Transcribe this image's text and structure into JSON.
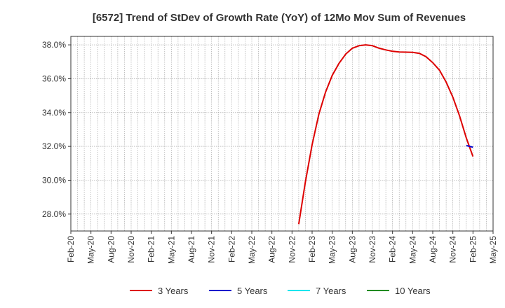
{
  "chart_data": {
    "type": "line",
    "title": "[6572]  Trend of StDev of Growth Rate (YoY) of 12Mo Mov Sum of Revenues",
    "xlabel": "",
    "ylabel": "",
    "y_tick_labels": [
      "28.0%",
      "30.0%",
      "32.0%",
      "34.0%",
      "36.0%",
      "38.0%"
    ],
    "y_ticks": [
      28,
      30,
      32,
      34,
      36,
      38
    ],
    "ylim": [
      27,
      38.5
    ],
    "x_tick_labels": [
      "Feb-20",
      "May-20",
      "Aug-20",
      "Nov-20",
      "Feb-21",
      "May-21",
      "Aug-21",
      "Nov-21",
      "Feb-22",
      "May-22",
      "Aug-22",
      "Nov-22",
      "Feb-23",
      "May-23",
      "Aug-23",
      "Nov-23",
      "Feb-24",
      "May-24",
      "Aug-24",
      "Nov-24",
      "Feb-25",
      "May-25"
    ],
    "x_unit": "months since Feb-20",
    "xlim": [
      0,
      63
    ],
    "grid": true,
    "legend_position": "bottom",
    "series": [
      {
        "name": "3 Years",
        "color": "#dd0000",
        "points": [
          [
            34,
            27.4
          ],
          [
            35,
            29.9
          ],
          [
            36,
            32.1
          ],
          [
            37,
            33.9
          ],
          [
            38,
            35.2
          ],
          [
            39,
            36.2
          ],
          [
            40,
            36.9
          ],
          [
            41,
            37.45
          ],
          [
            42,
            37.8
          ],
          [
            43,
            37.95
          ],
          [
            44,
            38.0
          ],
          [
            45,
            37.95
          ],
          [
            46,
            37.8
          ],
          [
            47,
            37.7
          ],
          [
            48,
            37.62
          ],
          [
            49,
            37.58
          ],
          [
            50,
            37.57
          ],
          [
            51,
            37.56
          ],
          [
            52,
            37.5
          ],
          [
            53,
            37.3
          ],
          [
            54,
            36.95
          ],
          [
            55,
            36.5
          ],
          [
            56,
            35.8
          ],
          [
            57,
            34.9
          ],
          [
            58,
            33.8
          ],
          [
            59,
            32.5
          ],
          [
            60,
            31.4
          ]
        ]
      },
      {
        "name": "5 Years",
        "color": "#0000cc",
        "points": [
          [
            59,
            32.05
          ],
          [
            60,
            31.95
          ]
        ]
      },
      {
        "name": "7 Years",
        "color": "#00e5ee",
        "points": []
      },
      {
        "name": "10 Years",
        "color": "#228b22",
        "points": []
      }
    ]
  }
}
